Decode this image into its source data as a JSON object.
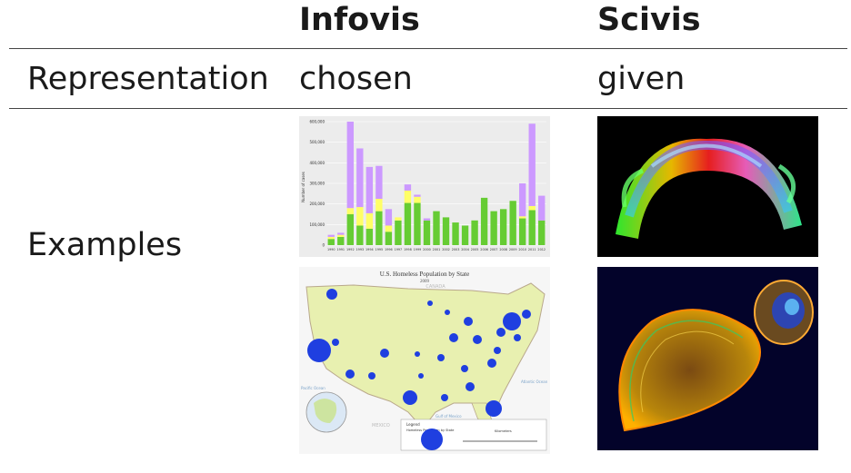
{
  "table": {
    "headers": [
      "Infovis",
      "Scivis"
    ],
    "rows": [
      {
        "label": "Representation",
        "infovis": "chosen",
        "scivis": "given"
      },
      {
        "label": "Examples"
      }
    ]
  },
  "chart_data": {
    "type": "bar",
    "ylabel": "Number of cases",
    "y_ticks": [
      "600,000",
      "500,000",
      "400,000",
      "300,000",
      "200,000",
      "100,000",
      "0"
    ],
    "ylim": [
      0,
      600000
    ],
    "categories": [
      "1990",
      "1991",
      "1992",
      "1993",
      "1994",
      "1995",
      "1996",
      "1997",
      "1998",
      "1999",
      "2000",
      "2001",
      "2002",
      "2003",
      "2004",
      "2005",
      "2006",
      "2007",
      "2008",
      "2009",
      "2010",
      "2011",
      "2012"
    ],
    "series": [
      {
        "color": "#66cc33",
        "values": [
          30000,
          40000,
          150000,
          95000,
          80000,
          165000,
          65000,
          120000,
          205000,
          205000,
          120000,
          165000,
          135000,
          110000,
          95000,
          120000,
          230000,
          165000,
          175000,
          215000,
          130000,
          170000,
          120000
        ]
      },
      {
        "color": "#ffff66",
        "values": [
          10000,
          10000,
          30000,
          90000,
          75000,
          60000,
          30000,
          15000,
          60000,
          30000,
          0,
          0,
          0,
          0,
          0,
          0,
          0,
          0,
          0,
          0,
          10000,
          20000,
          0
        ]
      },
      {
        "color": "#cc99ff",
        "values": [
          10000,
          10000,
          420000,
          285000,
          225000,
          160000,
          80000,
          0,
          30000,
          10000,
          10000,
          0,
          0,
          0,
          0,
          0,
          0,
          0,
          0,
          0,
          160000,
          400000,
          120000
        ]
      }
    ]
  },
  "map": {
    "title": "U.S. Homeless Population by State",
    "subtitle": "2009",
    "canada_label": "CANADA",
    "mexico_label": "MEXICO",
    "pacific_label": "Pacific Ocean",
    "atlantic_label": "Atlantic Ocean",
    "gulf_label": "Gulf of Mexico",
    "legend_title": "Legend",
    "legend_subtitle": "Homeless Population by State",
    "scale_label": "Kilometers",
    "bubble_color": "#1f3fe0",
    "land_color": "#e8f0b0"
  },
  "images": {
    "scivis_top": "dti-tractography",
    "scivis_bottom": "volume-rendering"
  }
}
